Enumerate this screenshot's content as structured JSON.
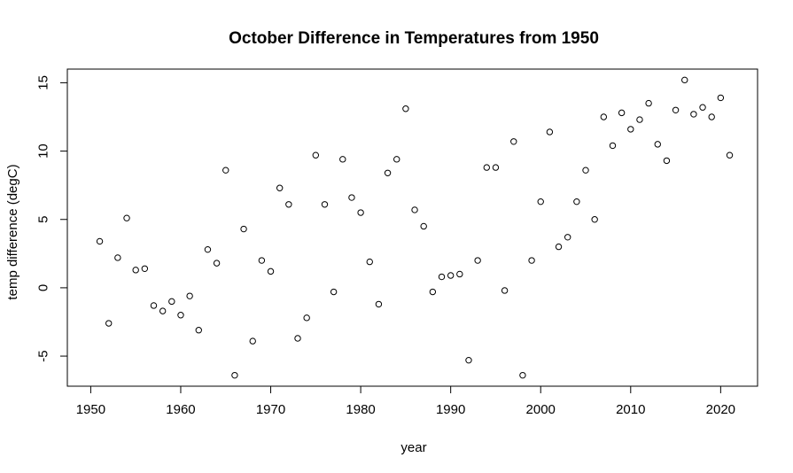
{
  "chart_data": {
    "type": "scatter",
    "title": "October Difference in Temperatures from 1950",
    "xlabel": "year",
    "ylabel": "temp difference (degC)",
    "xlim": [
      1947.4,
      2024.1
    ],
    "ylim": [
      -7.2,
      16.0
    ],
    "xticks": [
      1950,
      1960,
      1970,
      1980,
      1990,
      2000,
      2010,
      2020
    ],
    "yticks": [
      -5,
      0,
      5,
      10,
      15
    ],
    "grid": false,
    "legend": "none",
    "x": [
      1951,
      1952,
      1953,
      1954,
      1955,
      1956,
      1957,
      1958,
      1959,
      1960,
      1961,
      1962,
      1963,
      1964,
      1965,
      1966,
      1967,
      1968,
      1969,
      1970,
      1971,
      1972,
      1973,
      1974,
      1975,
      1976,
      1977,
      1978,
      1979,
      1980,
      1981,
      1982,
      1983,
      1984,
      1985,
      1986,
      1987,
      1988,
      1989,
      1990,
      1991,
      1992,
      1993,
      1994,
      1995,
      1996,
      1997,
      1998,
      1999,
      2000,
      2001,
      2002,
      2003,
      2004,
      2005,
      2006,
      2007,
      2008,
      2009,
      2010,
      2011,
      2012,
      2013,
      2014,
      2015,
      2016,
      2017,
      2018,
      2019,
      2020,
      2021
    ],
    "y": [
      3.4,
      -2.6,
      2.2,
      5.1,
      1.3,
      1.4,
      -1.3,
      -1.7,
      -1.0,
      -2.0,
      -0.6,
      -3.1,
      2.8,
      1.8,
      8.6,
      -6.4,
      4.3,
      -3.9,
      2.0,
      1.2,
      7.3,
      6.1,
      -3.7,
      -2.2,
      9.7,
      6.1,
      -0.3,
      9.4,
      6.6,
      5.5,
      1.9,
      -1.2,
      8.4,
      9.4,
      13.1,
      5.7,
      4.5,
      -0.3,
      0.8,
      0.9,
      1.0,
      -5.3,
      2.0,
      8.8,
      8.8,
      -0.2,
      10.7,
      -6.4,
      2.0,
      6.3,
      11.4,
      3.0,
      3.7,
      6.3,
      8.6,
      5.0,
      12.5,
      10.4,
      12.8,
      11.6,
      12.3,
      13.5,
      10.5,
      9.3,
      13.0,
      15.2,
      12.7,
      13.2,
      12.5,
      13.9,
      9.7
    ]
  }
}
